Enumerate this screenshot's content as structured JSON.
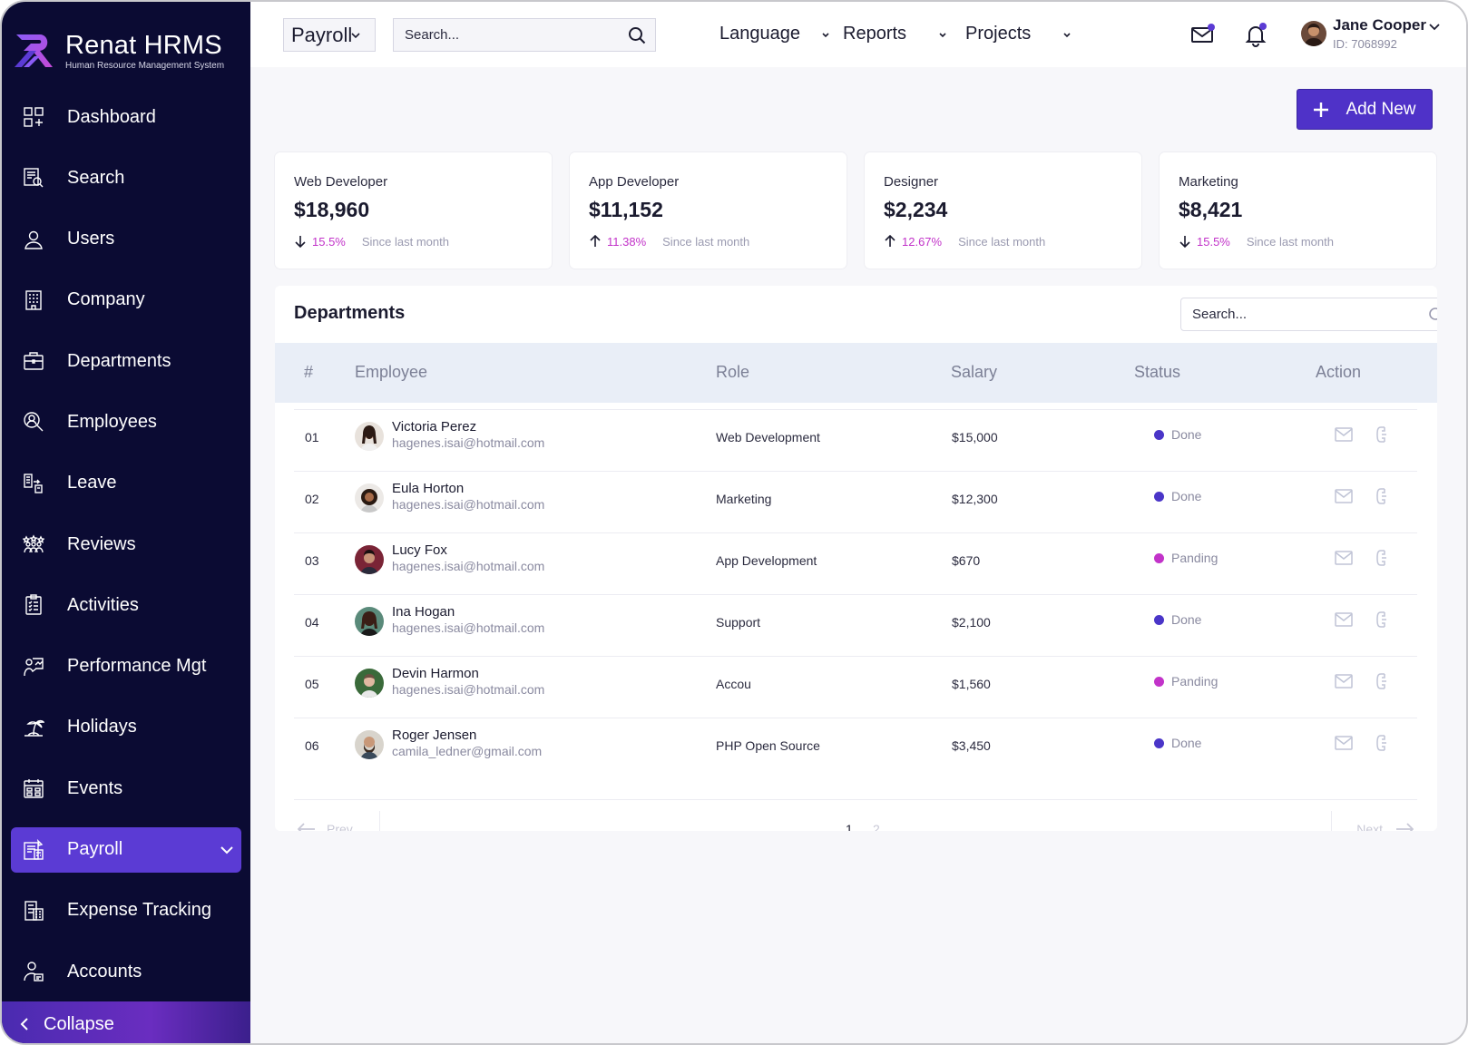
{
  "brand": {
    "name": "Renat HRMS",
    "subtitle": "Human Resource Management System"
  },
  "sidebar": {
    "items": [
      {
        "label": "Dashboard",
        "icon": "dashboard-icon"
      },
      {
        "label": "Search",
        "icon": "search-doc-icon"
      },
      {
        "label": "Users",
        "icon": "user-icon"
      },
      {
        "label": "Company",
        "icon": "building-icon"
      },
      {
        "label": "Departments",
        "icon": "briefcase-icon"
      },
      {
        "label": "Employees",
        "icon": "employee-search-icon"
      },
      {
        "label": "Leave",
        "icon": "leave-icon"
      },
      {
        "label": "Reviews",
        "icon": "reviews-icon"
      },
      {
        "label": "Activities",
        "icon": "clipboard-icon"
      },
      {
        "label": "Performance Mgt",
        "icon": "performance-icon"
      },
      {
        "label": "Holidays",
        "icon": "island-icon"
      },
      {
        "label": "Events",
        "icon": "calendar-icon"
      },
      {
        "label": "Payroll",
        "icon": "payroll-icon",
        "active": true
      },
      {
        "label": "Expense Tracking",
        "icon": "expense-icon"
      },
      {
        "label": "Accounts",
        "icon": "accounts-icon"
      }
    ],
    "collapse_label": "Collapse"
  },
  "header": {
    "breadcrumb_select": "Payroll",
    "search_placeholder": "Search...",
    "menus": [
      "Language",
      "Reports",
      "Projects"
    ],
    "user": {
      "name": "Jane Cooper",
      "id": "ID: 7068992"
    }
  },
  "add_button_label": "Add New",
  "stats": [
    {
      "title": "Web Developer",
      "value": "$18,960",
      "trend": "down",
      "pct": "15.5%",
      "since": "Since last month"
    },
    {
      "title": "App Developer",
      "value": "$11,152",
      "trend": "up",
      "pct": "11.38%",
      "since": "Since last month"
    },
    {
      "title": "Designer",
      "value": "$2,234",
      "trend": "up",
      "pct": "12.67%",
      "since": "Since last month"
    },
    {
      "title": "Marketing",
      "value": "$8,421",
      "trend": "down",
      "pct": "15.5%",
      "since": "Since last month"
    }
  ],
  "departments": {
    "title": "Departments",
    "search_placeholder": "Search...",
    "columns": [
      "#",
      "Employee",
      "Role",
      "Salary",
      "Status",
      "Action"
    ],
    "rows": [
      {
        "num": "01",
        "name": "Victoria Perez",
        "email": "hagenes.isai@hotmail.com",
        "role": "Web Development",
        "salary": "$15,000",
        "status": "Done"
      },
      {
        "num": "02",
        "name": "Eula Horton",
        "email": "hagenes.isai@hotmail.com",
        "role": "Marketing",
        "salary": "$12,300",
        "status": "Done"
      },
      {
        "num": "03",
        "name": "Lucy Fox",
        "email": "hagenes.isai@hotmail.com",
        "role": "App Development",
        "salary": "$670",
        "status": "Panding"
      },
      {
        "num": "04",
        "name": "Ina Hogan",
        "email": "hagenes.isai@hotmail.com",
        "role": "Support",
        "salary": "$2,100",
        "status": "Done"
      },
      {
        "num": "05",
        "name": "Devin Harmon",
        "email": "hagenes.isai@hotmail.com",
        "role": "Accou",
        "salary": "$1,560",
        "status": "Panding"
      },
      {
        "num": "06",
        "name": "Roger Jensen",
        "email": "camila_ledner@gmail.com",
        "role": "PHP Open Source",
        "salary": "$3,450",
        "status": "Done"
      }
    ],
    "pager": {
      "prev": "Prev",
      "next": "Next",
      "pages": [
        "1",
        "2"
      ]
    }
  },
  "colors": {
    "sidebar": "#0b0b33",
    "accent": "#5b3bd4",
    "done": "#4a35c8",
    "pending": "#c233c9",
    "trend_pct": "#c233c9"
  }
}
